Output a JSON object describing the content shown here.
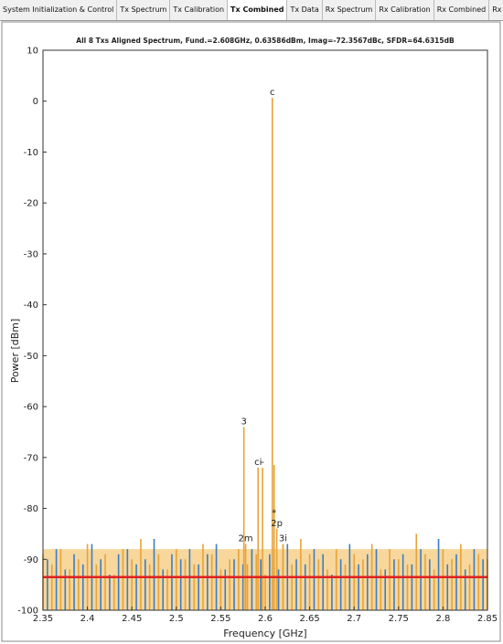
{
  "tabs": [
    "System Initialization & Control",
    "Tx Spectrum",
    "Tx Calibration",
    "Tx Combined",
    "Tx Data",
    "Rx Spectrum",
    "Rx Calibration",
    "Rx Combined",
    "Rx Data"
  ],
  "active_tab": 3,
  "chart_data": {
    "type": "stem",
    "title": "All 8 Txs Aligned Spectrum, Fund.=2.608GHz, 0.63586dBm, Imag=-72.3567dBc, SFDR=64.6315dB",
    "x_label": "Frequency [GHz]",
    "y_label": "Power [dBm]",
    "xlim": [
      2.35,
      2.85
    ],
    "xticks": [
      2.35,
      2.4,
      2.45,
      2.5,
      2.55,
      2.6,
      2.65,
      2.7,
      2.75,
      2.8,
      2.85
    ],
    "ylim": [
      -100,
      10
    ],
    "yticks": [
      10,
      0,
      -10,
      -20,
      -30,
      -40,
      -50,
      -60,
      -70,
      -80,
      -90,
      -100
    ],
    "series": [
      {
        "color": "#e8a33a",
        "x": [
          2.35,
          2.36,
          2.37,
          2.38,
          2.39,
          2.4,
          2.41,
          2.42,
          2.43,
          2.44,
          2.45,
          2.46,
          2.47,
          2.48,
          2.49,
          2.5,
          2.51,
          2.52,
          2.53,
          2.54,
          2.55,
          2.56,
          2.57,
          2.58,
          2.59,
          2.6,
          2.61,
          2.62,
          2.63,
          2.64,
          2.65,
          2.66,
          2.67,
          2.68,
          2.69,
          2.7,
          2.71,
          2.72,
          2.73,
          2.74,
          2.75,
          2.76,
          2.77,
          2.78,
          2.79,
          2.8,
          2.81,
          2.82,
          2.83,
          2.84,
          2.85
        ],
        "values": [
          -89,
          -91,
          -88,
          -92,
          -90,
          -87,
          -91,
          -89,
          -93,
          -88,
          -90,
          -86,
          -91,
          -89,
          -92,
          -88,
          -90,
          -91,
          -87,
          -89,
          -92,
          -90,
          -88,
          -91,
          -89,
          -93,
          -90,
          -87,
          -91,
          -86,
          -89,
          -90,
          -92,
          -88,
          -91,
          -89,
          -90,
          -87,
          -92,
          -88,
          -90,
          -91,
          -85,
          -89,
          -92,
          -88,
          -90,
          -87,
          -91,
          -89,
          -90
        ]
      },
      {
        "color": "#3b7dc4",
        "x": [
          2.355,
          2.365,
          2.375,
          2.385,
          2.395,
          2.405,
          2.415,
          2.425,
          2.435,
          2.445,
          2.455,
          2.465,
          2.475,
          2.485,
          2.495,
          2.505,
          2.515,
          2.525,
          2.535,
          2.545,
          2.555,
          2.565,
          2.575,
          2.585,
          2.595,
          2.605,
          2.615,
          2.625,
          2.635,
          2.645,
          2.655,
          2.665,
          2.675,
          2.685,
          2.695,
          2.705,
          2.715,
          2.725,
          2.735,
          2.745,
          2.755,
          2.765,
          2.775,
          2.785,
          2.795,
          2.805,
          2.815,
          2.825,
          2.835,
          2.845
        ],
        "values": [
          -90,
          -88,
          -92,
          -89,
          -91,
          -87,
          -90,
          -93,
          -89,
          -88,
          -91,
          -90,
          -86,
          -92,
          -89,
          -90,
          -88,
          -91,
          -89,
          -87,
          -92,
          -90,
          -91,
          -88,
          -90,
          -89,
          -92,
          -87,
          -90,
          -91,
          -88,
          -89,
          -93,
          -90,
          -87,
          -91,
          -89,
          -88,
          -92,
          -90,
          -89,
          -91,
          -88,
          -90,
          -86,
          -91,
          -89,
          -92,
          -88,
          -90
        ]
      },
      {
        "color": "#e8a33a",
        "x": [
          2.576,
          2.578,
          2.592,
          2.597,
          2.608,
          2.61,
          2.613,
          2.62
        ],
        "values": [
          -64,
          -87,
          -72,
          -72,
          0.63586,
          -71.5,
          -84,
          -87
        ]
      }
    ],
    "reference_line": {
      "value": -93.5,
      "color": "#e02020"
    },
    "annotations": [
      {
        "text": "c",
        "x": 2.608,
        "y": 0.63586
      },
      {
        "text": "3",
        "x": 2.576,
        "y": -64
      },
      {
        "text": "ci",
        "x": 2.592,
        "y": -72
      },
      {
        "text": "-",
        "x": 2.597,
        "y": -72
      },
      {
        "text": "*",
        "x": 2.61,
        "y": -82
      },
      {
        "text": "2p",
        "x": 2.613,
        "y": -84
      },
      {
        "text": "3i",
        "x": 2.62,
        "y": -87
      },
      {
        "text": "2m",
        "x": 2.578,
        "y": -87
      }
    ],
    "grid": false
  }
}
